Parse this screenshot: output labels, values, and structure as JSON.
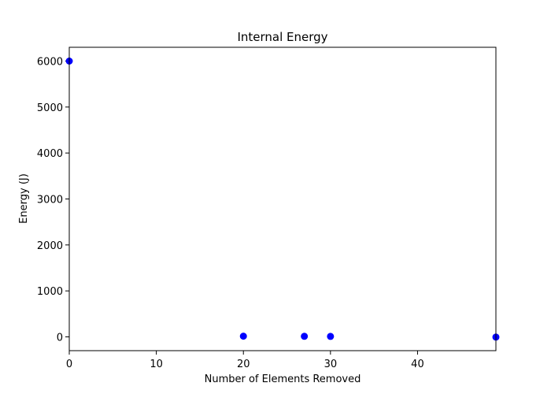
{
  "chart_data": {
    "type": "scatter",
    "title": "Internal Energy",
    "xlabel": "Number of Elements Removed",
    "ylabel": "Energy (J)",
    "xlim": [
      0,
      49
    ],
    "ylim": [
      -300,
      6300
    ],
    "xticks": [
      0,
      10,
      20,
      30,
      40
    ],
    "xtick_labels": [
      "0",
      "10",
      "20",
      "30",
      "40"
    ],
    "yticks": [
      0,
      1000,
      2000,
      3000,
      4000,
      5000,
      6000
    ],
    "ytick_labels": [
      "0",
      "1000",
      "2000",
      "3000",
      "4000",
      "5000",
      "6000"
    ],
    "grid": false,
    "series": [
      {
        "color": "#0000ff",
        "x": [
          0,
          20,
          27,
          30,
          49
        ],
        "y": [
          6000,
          15,
          12,
          10,
          -5
        ]
      }
    ]
  }
}
